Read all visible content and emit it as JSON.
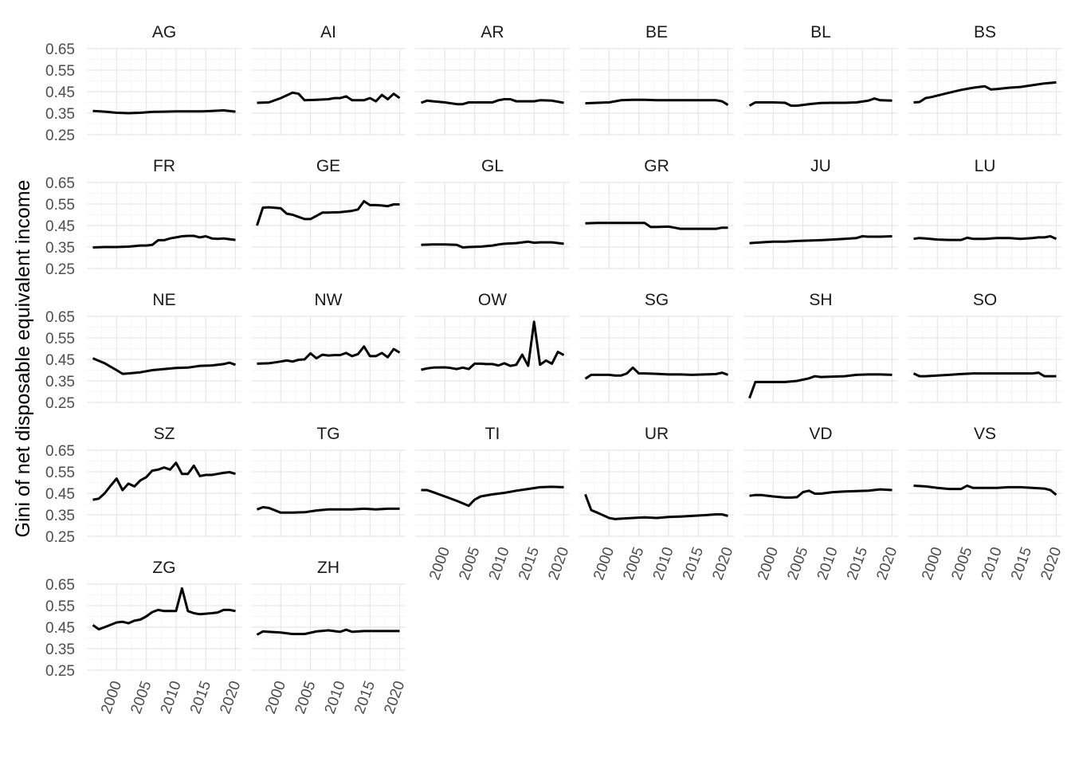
{
  "chart_data": {
    "type": "line",
    "facet_layout": "wrap",
    "ncol": 6,
    "ylabel": "Gini of net disposable equivalent income",
    "xlabel": "",
    "ylim": [
      0.25,
      0.65
    ],
    "yticks": [
      0.25,
      0.35,
      0.45,
      0.55,
      0.65
    ],
    "ytick_labels": [
      "0.25",
      "0.35",
      "0.45",
      "0.55",
      "0.65"
    ],
    "xlim": [
      1995,
      2021
    ],
    "xticks": [
      2000,
      2005,
      2010,
      2015,
      2020
    ],
    "xtick_labels": [
      "2000",
      "2005",
      "2010",
      "2015",
      "2020"
    ],
    "grid": true,
    "line_color": "#000000",
    "panels": [
      {
        "name": "AG",
        "x": [
          1996,
          1998,
          2000,
          2002,
          2004,
          2006,
          2008,
          2010,
          2012,
          2014,
          2016,
          2018,
          2020
        ],
        "y": [
          0.36,
          0.357,
          0.352,
          0.35,
          0.352,
          0.356,
          0.357,
          0.358,
          0.358,
          0.358,
          0.36,
          0.363,
          0.357
        ]
      },
      {
        "name": "AI",
        "x": [
          1996,
          1998,
          2000,
          2002,
          2003,
          2004,
          2006,
          2008,
          2009,
          2010,
          2011,
          2012,
          2014,
          2015,
          2016,
          2017,
          2018,
          2019,
          2020
        ],
        "y": [
          0.398,
          0.4,
          0.42,
          0.445,
          0.44,
          0.41,
          0.412,
          0.415,
          0.42,
          0.42,
          0.428,
          0.41,
          0.41,
          0.42,
          0.405,
          0.435,
          0.415,
          0.44,
          0.42
        ]
      },
      {
        "name": "AR",
        "x": [
          1996,
          1997,
          1998,
          2000,
          2002,
          2003,
          2004,
          2006,
          2008,
          2009,
          2010,
          2011,
          2012,
          2014,
          2015,
          2016,
          2018,
          2020
        ],
        "y": [
          0.398,
          0.408,
          0.405,
          0.4,
          0.392,
          0.392,
          0.4,
          0.4,
          0.4,
          0.41,
          0.415,
          0.415,
          0.405,
          0.405,
          0.405,
          0.41,
          0.408,
          0.398
        ]
      },
      {
        "name": "BE",
        "x": [
          1996,
          1998,
          2000,
          2002,
          2004,
          2006,
          2008,
          2010,
          2012,
          2014,
          2016,
          2018,
          2019,
          2020
        ],
        "y": [
          0.396,
          0.398,
          0.4,
          0.41,
          0.412,
          0.412,
          0.41,
          0.41,
          0.41,
          0.41,
          0.41,
          0.41,
          0.405,
          0.388
        ]
      },
      {
        "name": "BL",
        "x": [
          1996,
          1997,
          1998,
          2000,
          2002,
          2003,
          2004,
          2006,
          2008,
          2010,
          2012,
          2014,
          2016,
          2017,
          2018,
          2020
        ],
        "y": [
          0.385,
          0.4,
          0.4,
          0.4,
          0.398,
          0.385,
          0.385,
          0.392,
          0.397,
          0.398,
          0.398,
          0.4,
          0.408,
          0.418,
          0.41,
          0.408
        ]
      },
      {
        "name": "BS",
        "x": [
          1996,
          1997,
          1998,
          1999,
          2000,
          2002,
          2004,
          2006,
          2008,
          2009,
          2010,
          2012,
          2014,
          2016,
          2018,
          2020
        ],
        "y": [
          0.4,
          0.402,
          0.42,
          0.425,
          0.432,
          0.445,
          0.458,
          0.468,
          0.475,
          0.46,
          0.462,
          0.468,
          0.472,
          0.48,
          0.488,
          0.493
        ]
      },
      {
        "name": "FR",
        "x": [
          1996,
          1998,
          2000,
          2002,
          2004,
          2005,
          2006,
          2007,
          2008,
          2009,
          2010,
          2011,
          2012,
          2013,
          2014,
          2015,
          2016,
          2017,
          2018,
          2020
        ],
        "y": [
          0.348,
          0.35,
          0.35,
          0.352,
          0.357,
          0.357,
          0.36,
          0.382,
          0.382,
          0.39,
          0.395,
          0.4,
          0.402,
          0.402,
          0.395,
          0.4,
          0.39,
          0.388,
          0.39,
          0.383
        ]
      },
      {
        "name": "GE",
        "x": [
          1996,
          1997,
          1998,
          2000,
          2001,
          2002,
          2003,
          2004,
          2005,
          2006,
          2007,
          2008,
          2010,
          2012,
          2013,
          2014,
          2015,
          2016,
          2017,
          2018,
          2019,
          2020
        ],
        "y": [
          0.45,
          0.533,
          0.535,
          0.53,
          0.505,
          0.5,
          0.49,
          0.48,
          0.48,
          0.495,
          0.51,
          0.51,
          0.512,
          0.518,
          0.525,
          0.563,
          0.545,
          0.545,
          0.543,
          0.54,
          0.548,
          0.548
        ]
      },
      {
        "name": "GL",
        "x": [
          1996,
          1998,
          2000,
          2002,
          2003,
          2004,
          2006,
          2008,
          2009,
          2010,
          2012,
          2014,
          2015,
          2016,
          2018,
          2020
        ],
        "y": [
          0.36,
          0.362,
          0.362,
          0.36,
          0.348,
          0.35,
          0.352,
          0.357,
          0.362,
          0.365,
          0.368,
          0.375,
          0.37,
          0.372,
          0.372,
          0.365
        ]
      },
      {
        "name": "GR",
        "x": [
          1996,
          1998,
          2000,
          2002,
          2004,
          2006,
          2007,
          2008,
          2010,
          2011,
          2012,
          2014,
          2016,
          2018,
          2019,
          2020
        ],
        "y": [
          0.46,
          0.462,
          0.462,
          0.462,
          0.462,
          0.462,
          0.443,
          0.443,
          0.445,
          0.44,
          0.435,
          0.435,
          0.435,
          0.435,
          0.44,
          0.44
        ]
      },
      {
        "name": "JU",
        "x": [
          1996,
          1998,
          2000,
          2002,
          2004,
          2006,
          2008,
          2010,
          2012,
          2014,
          2015,
          2016,
          2018,
          2020
        ],
        "y": [
          0.368,
          0.372,
          0.375,
          0.375,
          0.378,
          0.38,
          0.382,
          0.385,
          0.388,
          0.392,
          0.4,
          0.398,
          0.398,
          0.4
        ]
      },
      {
        "name": "LU",
        "x": [
          1996,
          1997,
          1998,
          2000,
          2002,
          2004,
          2005,
          2006,
          2008,
          2010,
          2012,
          2014,
          2016,
          2017,
          2018,
          2019,
          2020
        ],
        "y": [
          0.388,
          0.392,
          0.39,
          0.385,
          0.383,
          0.383,
          0.393,
          0.388,
          0.388,
          0.392,
          0.392,
          0.388,
          0.392,
          0.395,
          0.395,
          0.4,
          0.388
        ]
      },
      {
        "name": "NE",
        "x": [
          1996,
          1998,
          2000,
          2001,
          2002,
          2004,
          2006,
          2008,
          2010,
          2012,
          2014,
          2016,
          2018,
          2019,
          2020
        ],
        "y": [
          0.455,
          0.432,
          0.4,
          0.383,
          0.385,
          0.39,
          0.4,
          0.405,
          0.41,
          0.412,
          0.42,
          0.422,
          0.428,
          0.435,
          0.425
        ]
      },
      {
        "name": "NW",
        "x": [
          1996,
          1998,
          2000,
          2001,
          2002,
          2003,
          2004,
          2005,
          2006,
          2007,
          2008,
          2009,
          2010,
          2011,
          2012,
          2013,
          2014,
          2015,
          2016,
          2017,
          2018,
          2019,
          2020
        ],
        "y": [
          0.43,
          0.432,
          0.44,
          0.445,
          0.44,
          0.448,
          0.45,
          0.478,
          0.455,
          0.472,
          0.468,
          0.47,
          0.47,
          0.48,
          0.465,
          0.475,
          0.51,
          0.465,
          0.465,
          0.48,
          0.46,
          0.498,
          0.482
        ]
      },
      {
        "name": "OW",
        "x": [
          1996,
          1997,
          1998,
          2000,
          2001,
          2002,
          2003,
          2004,
          2005,
          2006,
          2007,
          2008,
          2009,
          2010,
          2011,
          2012,
          2013,
          2014,
          2015,
          2016,
          2017,
          2018,
          2019,
          2020
        ],
        "y": [
          0.402,
          0.408,
          0.412,
          0.413,
          0.41,
          0.405,
          0.412,
          0.405,
          0.43,
          0.43,
          0.428,
          0.428,
          0.422,
          0.432,
          0.42,
          0.425,
          0.472,
          0.42,
          0.625,
          0.425,
          0.445,
          0.43,
          0.485,
          0.47
        ]
      },
      {
        "name": "SG",
        "x": [
          1996,
          1997,
          1998,
          2000,
          2001,
          2002,
          2003,
          2004,
          2005,
          2006,
          2008,
          2010,
          2012,
          2014,
          2016,
          2018,
          2019,
          2020
        ],
        "y": [
          0.36,
          0.378,
          0.378,
          0.378,
          0.375,
          0.375,
          0.385,
          0.412,
          0.385,
          0.385,
          0.383,
          0.38,
          0.38,
          0.378,
          0.38,
          0.382,
          0.388,
          0.378
        ]
      },
      {
        "name": "SH",
        "x": [
          1996,
          1997,
          1998,
          2000,
          2002,
          2004,
          2006,
          2007,
          2008,
          2010,
          2012,
          2014,
          2016,
          2018,
          2020
        ],
        "y": [
          0.27,
          0.345,
          0.345,
          0.345,
          0.345,
          0.35,
          0.362,
          0.372,
          0.368,
          0.37,
          0.372,
          0.378,
          0.38,
          0.38,
          0.378
        ]
      },
      {
        "name": "SO",
        "x": [
          1996,
          1997,
          1998,
          2000,
          2002,
          2004,
          2006,
          2008,
          2010,
          2012,
          2014,
          2016,
          2017,
          2018,
          2019,
          2020
        ],
        "y": [
          0.385,
          0.372,
          0.372,
          0.375,
          0.378,
          0.382,
          0.385,
          0.385,
          0.385,
          0.385,
          0.385,
          0.385,
          0.388,
          0.372,
          0.372,
          0.372
        ]
      },
      {
        "name": "SZ",
        "x": [
          1996,
          1997,
          1998,
          1999,
          2000,
          2001,
          2002,
          2003,
          2004,
          2005,
          2006,
          2007,
          2008,
          2009,
          2010,
          2011,
          2012,
          2013,
          2014,
          2015,
          2016,
          2017,
          2018,
          2019,
          2020
        ],
        "y": [
          0.42,
          0.425,
          0.45,
          0.485,
          0.518,
          0.465,
          0.495,
          0.482,
          0.51,
          0.525,
          0.555,
          0.56,
          0.57,
          0.56,
          0.592,
          0.54,
          0.54,
          0.578,
          0.53,
          0.535,
          0.535,
          0.54,
          0.545,
          0.548,
          0.54
        ]
      },
      {
        "name": "TG",
        "x": [
          1996,
          1997,
          1998,
          2000,
          2002,
          2004,
          2006,
          2008,
          2010,
          2012,
          2014,
          2016,
          2018,
          2020
        ],
        "y": [
          0.375,
          0.385,
          0.382,
          0.36,
          0.36,
          0.362,
          0.37,
          0.375,
          0.375,
          0.375,
          0.378,
          0.375,
          0.378,
          0.378
        ]
      },
      {
        "name": "TI",
        "x": [
          1996,
          1997,
          1998,
          2000,
          2002,
          2004,
          2005,
          2006,
          2008,
          2010,
          2012,
          2014,
          2016,
          2018,
          2020
        ],
        "y": [
          0.465,
          0.465,
          0.455,
          0.435,
          0.415,
          0.392,
          0.42,
          0.435,
          0.445,
          0.452,
          0.462,
          0.47,
          0.478,
          0.48,
          0.478
        ]
      },
      {
        "name": "UR",
        "x": [
          1996,
          1997,
          1998,
          2000,
          2001,
          2002,
          2004,
          2006,
          2008,
          2010,
          2012,
          2014,
          2016,
          2018,
          2019,
          2020
        ],
        "y": [
          0.445,
          0.372,
          0.36,
          0.335,
          0.33,
          0.332,
          0.335,
          0.338,
          0.335,
          0.34,
          0.342,
          0.345,
          0.348,
          0.352,
          0.352,
          0.345
        ]
      },
      {
        "name": "VD",
        "x": [
          1996,
          1997,
          1998,
          2000,
          2002,
          2003,
          2004,
          2005,
          2006,
          2007,
          2008,
          2010,
          2012,
          2014,
          2016,
          2018,
          2020
        ],
        "y": [
          0.438,
          0.442,
          0.442,
          0.435,
          0.43,
          0.43,
          0.432,
          0.455,
          0.462,
          0.448,
          0.448,
          0.455,
          0.458,
          0.46,
          0.462,
          0.468,
          0.465
        ]
      },
      {
        "name": "VS",
        "x": [
          1996,
          1998,
          2000,
          2002,
          2004,
          2005,
          2006,
          2008,
          2010,
          2012,
          2014,
          2016,
          2018,
          2019,
          2020
        ],
        "y": [
          0.485,
          0.482,
          0.475,
          0.47,
          0.47,
          0.485,
          0.475,
          0.475,
          0.475,
          0.478,
          0.478,
          0.475,
          0.472,
          0.465,
          0.443
        ]
      },
      {
        "name": "ZG",
        "x": [
          1996,
          1997,
          1998,
          2000,
          2001,
          2002,
          2003,
          2004,
          2005,
          2006,
          2007,
          2008,
          2009,
          2010,
          2011,
          2012,
          2013,
          2014,
          2016,
          2017,
          2018,
          2019,
          2020
        ],
        "y": [
          0.46,
          0.44,
          0.45,
          0.472,
          0.475,
          0.468,
          0.48,
          0.485,
          0.5,
          0.52,
          0.53,
          0.525,
          0.525,
          0.525,
          0.63,
          0.525,
          0.515,
          0.51,
          0.515,
          0.518,
          0.53,
          0.53,
          0.525
        ]
      },
      {
        "name": "ZH",
        "x": [
          1996,
          1997,
          1998,
          2000,
          2002,
          2003,
          2004,
          2006,
          2008,
          2010,
          2011,
          2012,
          2014,
          2016,
          2018,
          2020
        ],
        "y": [
          0.415,
          0.43,
          0.428,
          0.425,
          0.418,
          0.418,
          0.418,
          0.43,
          0.435,
          0.428,
          0.438,
          0.428,
          0.432,
          0.432,
          0.432,
          0.432
        ]
      }
    ]
  }
}
